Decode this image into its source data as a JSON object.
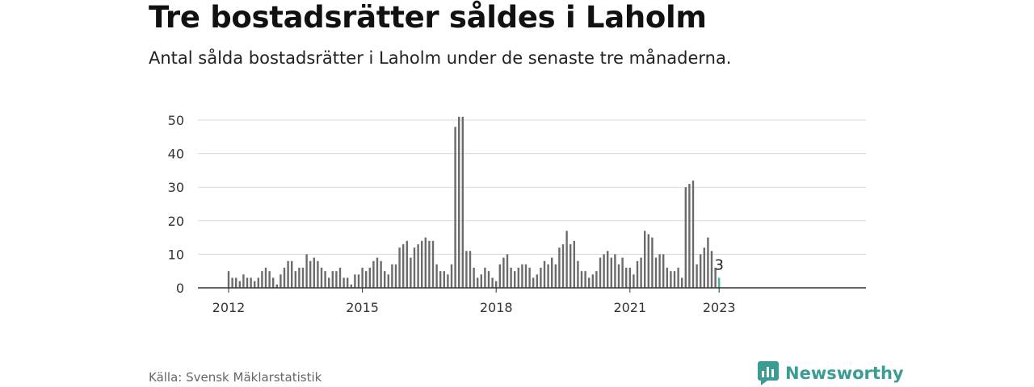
{
  "header": {
    "title": "Tre bostadsrätter såldes i Laholm",
    "subtitle": "Antal sålda bostadsrätter i Laholm under de senaste tre månaderna."
  },
  "footer": {
    "source": "Källa: Svensk Mäklarstatistik",
    "brand": "Newsworthy",
    "brand_icon": "newsworthy-logo-icon"
  },
  "colors": {
    "bar": "#6b6b6b",
    "highlight": "#3fb8aa",
    "grid": "#d9d9d9",
    "axis": "#333333",
    "brand": "#3a9c93"
  },
  "chart_data": {
    "type": "bar",
    "title": "Tre bostadsrätter såldes i Laholm",
    "xlabel": "",
    "ylabel": "",
    "ylim": [
      0,
      55
    ],
    "yticks": [
      0,
      10,
      20,
      30,
      40,
      50
    ],
    "xticks": [
      "2012",
      "2015",
      "2018",
      "2021",
      "2023"
    ],
    "grid": true,
    "annotation": "3",
    "x_start": "2012-01",
    "x_end": "2023-01",
    "values": [
      5,
      3,
      3,
      2,
      4,
      3,
      3,
      2,
      3,
      5,
      6,
      5,
      3,
      1,
      4,
      6,
      8,
      8,
      5,
      6,
      6,
      10,
      8,
      9,
      8,
      6,
      5,
      3,
      5,
      5,
      6,
      3,
      3,
      1,
      4,
      4,
      6,
      5,
      6,
      8,
      9,
      8,
      5,
      4,
      7,
      7,
      12,
      13,
      14,
      9,
      12,
      13,
      14,
      15,
      14,
      14,
      7,
      5,
      5,
      4,
      7,
      48,
      51,
      51,
      11,
      11,
      6,
      3,
      4,
      6,
      5,
      3,
      2,
      7,
      9,
      10,
      6,
      5,
      6,
      7,
      7,
      6,
      3,
      4,
      6,
      8,
      7,
      9,
      7,
      12,
      13,
      17,
      13,
      14,
      8,
      5,
      5,
      3,
      4,
      5,
      9,
      10,
      11,
      9,
      10,
      7,
      9,
      6,
      6,
      4,
      8,
      9,
      17,
      16,
      15,
      9,
      10,
      10,
      6,
      5,
      5,
      6,
      3,
      30,
      31,
      32,
      7,
      10,
      12,
      15,
      11,
      6,
      3
    ]
  }
}
